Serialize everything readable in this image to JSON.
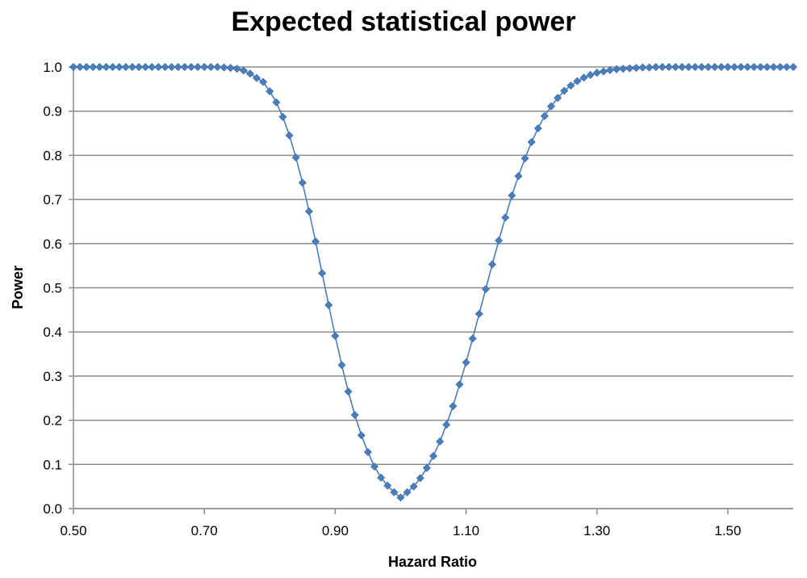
{
  "chart_data": {
    "type": "scatter",
    "title": "Expected statistical power",
    "xlabel": "Hazard Ratio",
    "ylabel": "Power",
    "xlim": [
      0.5,
      1.6
    ],
    "ylim": [
      0.0,
      1.0
    ],
    "x_ticks": [
      "0.50",
      "0.70",
      "0.90",
      "1.10",
      "1.30",
      "1.50"
    ],
    "y_ticks": [
      "0.0",
      "0.1",
      "0.2",
      "0.3",
      "0.4",
      "0.5",
      "0.6",
      "0.7",
      "0.8",
      "0.9",
      "1.0"
    ],
    "grid": "horizontal",
    "legend": "none",
    "series": [
      {
        "color": "#4a7ebb",
        "marker": "diamond",
        "x": [
          0.5,
          0.51,
          0.52,
          0.53,
          0.54,
          0.55,
          0.56,
          0.57,
          0.58,
          0.59,
          0.6,
          0.61,
          0.62,
          0.63,
          0.64,
          0.65,
          0.66,
          0.67,
          0.68,
          0.69,
          0.7,
          0.71,
          0.72,
          0.73,
          0.74,
          0.75,
          0.76,
          0.77,
          0.78,
          0.79,
          0.8,
          0.81,
          0.82,
          0.83,
          0.84,
          0.85,
          0.86,
          0.87,
          0.88,
          0.89,
          0.9,
          0.91,
          0.92,
          0.93,
          0.94,
          0.95,
          0.96,
          0.97,
          0.98,
          0.99,
          1.0,
          1.01,
          1.02,
          1.03,
          1.04,
          1.05,
          1.06,
          1.07,
          1.08,
          1.09,
          1.1,
          1.11,
          1.12,
          1.13,
          1.14,
          1.15,
          1.16,
          1.17,
          1.18,
          1.19,
          1.2,
          1.21,
          1.22,
          1.23,
          1.24,
          1.25,
          1.26,
          1.27,
          1.28,
          1.29,
          1.3,
          1.31,
          1.32,
          1.33,
          1.34,
          1.35,
          1.36,
          1.37,
          1.38,
          1.39,
          1.4,
          1.41,
          1.42,
          1.43,
          1.44,
          1.45,
          1.46,
          1.47,
          1.48,
          1.49,
          1.5,
          1.51,
          1.52,
          1.53,
          1.54,
          1.55,
          1.56,
          1.57,
          1.58,
          1.59,
          1.6
        ],
        "y": [
          1.0,
          1.0,
          1.0,
          1.0,
          1.0,
          1.0,
          1.0,
          1.0,
          1.0,
          1.0,
          1.0,
          1.0,
          1.0,
          1.0,
          1.0,
          1.0,
          1.0,
          1.0,
          1.0,
          1.0,
          1.0,
          1.0,
          1.0,
          0.999,
          0.998,
          0.996,
          0.992,
          0.985,
          0.975,
          0.966,
          0.945,
          0.92,
          0.887,
          0.845,
          0.795,
          0.738,
          0.673,
          0.605,
          0.533,
          0.461,
          0.391,
          0.325,
          0.265,
          0.212,
          0.166,
          0.128,
          0.095,
          0.07,
          0.052,
          0.037,
          0.025,
          0.037,
          0.05,
          0.069,
          0.092,
          0.119,
          0.152,
          0.19,
          0.232,
          0.281,
          0.331,
          0.385,
          0.441,
          0.497,
          0.553,
          0.607,
          0.659,
          0.709,
          0.753,
          0.793,
          0.83,
          0.861,
          0.889,
          0.911,
          0.93,
          0.946,
          0.958,
          0.968,
          0.976,
          0.982,
          0.987,
          0.99,
          0.993,
          0.995,
          0.996,
          0.997,
          0.998,
          0.999,
          0.999,
          1.0,
          1.0,
          1.0,
          1.0,
          1.0,
          1.0,
          1.0,
          1.0,
          1.0,
          1.0,
          1.0,
          1.0,
          1.0,
          1.0,
          1.0,
          1.0,
          1.0,
          1.0,
          1.0,
          1.0,
          1.0,
          1.0
        ]
      }
    ]
  }
}
